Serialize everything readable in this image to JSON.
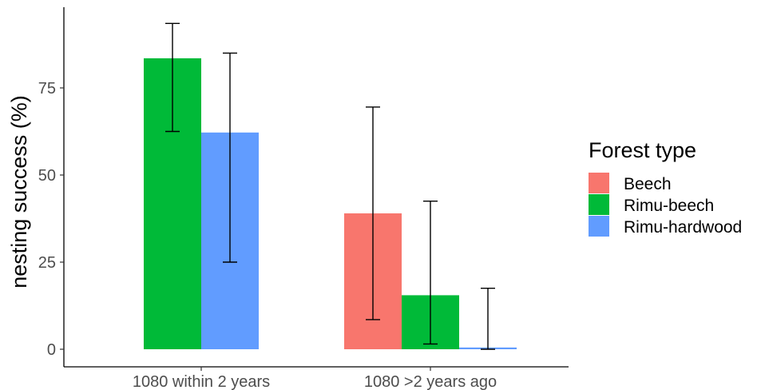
{
  "chart_data": {
    "type": "bar",
    "ylabel": "nesting success (%)",
    "xlabel": "",
    "ylim": [
      0,
      98
    ],
    "yticks": [
      0,
      25,
      50,
      75
    ],
    "grid": false,
    "legend_position": "right",
    "legend_title": "Forest type",
    "categories": [
      "1080 within 2 years",
      "1080 >2 years ago"
    ],
    "series": [
      {
        "name": "Beech",
        "color": "#F8766D",
        "values": [
          null,
          39.0
        ],
        "error_low": [
          null,
          8.5
        ],
        "error_high": [
          null,
          69.5
        ]
      },
      {
        "name": "Rimu-beech",
        "color": "#00BA38",
        "values": [
          83.5,
          15.5
        ],
        "error_low": [
          62.5,
          1.5
        ],
        "error_high": [
          93.5,
          42.5
        ]
      },
      {
        "name": "Rimu-hardwood",
        "color": "#619CFF",
        "values": [
          62.2,
          0.5
        ],
        "error_low": [
          25.0,
          0.0
        ],
        "error_high": [
          85.0,
          17.5
        ]
      }
    ]
  }
}
